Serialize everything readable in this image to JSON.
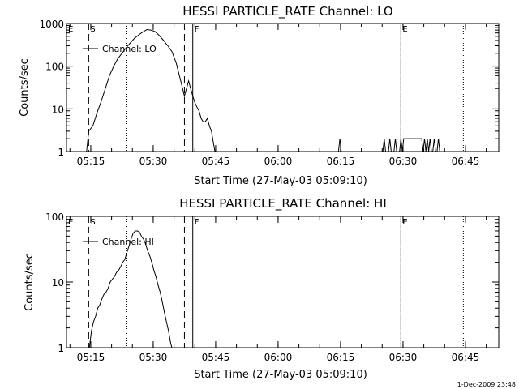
{
  "footer": {
    "timestamp": "1-Dec-2009 23:48"
  },
  "chart_data": [
    {
      "type": "line",
      "title": "HESSI PARTICLE_RATE Channel: LO",
      "xlabel": "Start Time (27-May-03 05:09:10)",
      "ylabel": "Counts/sec",
      "y_scale": "log",
      "ylim": [
        1,
        1000
      ],
      "xlim": [
        "05:09:10",
        "06:53:00"
      ],
      "x_ticks": [
        "05:15",
        "05:30",
        "05:45",
        "06:00",
        "06:15",
        "06:30",
        "06:45"
      ],
      "y_ticks": [
        "1",
        "10",
        "100",
        "1000"
      ],
      "legend": "Channel: LO",
      "legend_position": "top-left",
      "markers": [
        {
          "label": "E",
          "time": "05:09:10",
          "style": "solid"
        },
        {
          "label": "S",
          "time": "05:14:30",
          "style": "dashed"
        },
        {
          "label": "",
          "time": "05:23:30",
          "style": "dotted"
        },
        {
          "label": "",
          "time": "05:37:30",
          "style": "dashed"
        },
        {
          "label": "F",
          "time": "05:39:30",
          "style": "solid"
        },
        {
          "label": "E",
          "time": "06:29:30",
          "style": "solid"
        },
        {
          "label": "",
          "time": "06:29:30",
          "style": "dotted"
        },
        {
          "label": "",
          "time": "06:44:30",
          "style": "dotted"
        }
      ],
      "series": [
        {
          "x": [
            "05:14:00",
            "05:14:30",
            "05:15:30",
            "05:16:30",
            "05:17:30",
            "05:18:30",
            "05:19:30",
            "05:20:30",
            "05:21:30",
            "05:22:30",
            "05:23:30",
            "05:24:30",
            "05:25:30",
            "05:26:30",
            "05:27:30",
            "05:28:30",
            "05:29:30",
            "05:30:30",
            "05:31:30",
            "05:32:30",
            "05:33:30",
            "05:34:30",
            "05:35:30",
            "05:36:30",
            "05:37:30",
            "05:38:00",
            "05:38:30",
            "05:39:00",
            "05:39:30",
            "05:40:00",
            "05:40:30",
            "05:41:00",
            "05:41:30",
            "05:42:00",
            "05:42:30",
            "05:43:00",
            "05:43:30",
            "05:44:00",
            "05:44:30",
            "05:44:50"
          ],
          "values": [
            1,
            3,
            4,
            8,
            15,
            30,
            60,
            100,
            150,
            200,
            270,
            350,
            450,
            540,
            630,
            720,
            700,
            640,
            520,
            400,
            300,
            220,
            120,
            50,
            20,
            30,
            45,
            30,
            20,
            14,
            11,
            9,
            6,
            5,
            5,
            6,
            4,
            3,
            1.5,
            1
          ]
        },
        {
          "x": [
            "06:14:30",
            "06:14:50",
            "06:15:10",
            "06:25:10",
            "06:25:30",
            "06:25:50",
            "06:26:30",
            "06:26:50",
            "06:27:10",
            "06:27:50",
            "06:28:10",
            "06:28:30",
            "06:29:10",
            "06:29:30",
            "06:29:50",
            "06:30:10",
            "06:30:30",
            "06:34:30",
            "06:34:50",
            "06:35:10",
            "06:35:30",
            "06:35:50",
            "06:36:10",
            "06:36:30",
            "06:36:50",
            "06:37:10",
            "06:37:30",
            "06:37:50",
            "06:38:10",
            "06:38:30",
            "06:38:50",
            "06:39:10"
          ],
          "values": [
            1,
            2,
            1,
            1,
            2,
            1,
            1,
            2,
            1,
            1,
            2,
            1,
            1,
            2,
            1,
            2,
            2,
            2,
            1,
            2,
            1,
            2,
            1,
            2,
            1,
            1,
            2,
            1,
            1,
            2,
            1,
            1
          ]
        }
      ]
    },
    {
      "type": "line",
      "title": "HESSI PARTICLE_RATE Channel: HI",
      "xlabel": "Start Time (27-May-03 05:09:10)",
      "ylabel": "Counts/sec",
      "y_scale": "log",
      "ylim": [
        1,
        100
      ],
      "xlim": [
        "05:09:10",
        "06:53:00"
      ],
      "x_ticks": [
        "05:15",
        "05:30",
        "05:45",
        "06:00",
        "06:15",
        "06:30",
        "06:45"
      ],
      "y_ticks": [
        "1",
        "10",
        "100"
      ],
      "legend": "Channel: HI",
      "legend_position": "top-left",
      "markers": [
        {
          "label": "E",
          "time": "05:09:10",
          "style": "solid"
        },
        {
          "label": "S",
          "time": "05:14:30",
          "style": "dashed"
        },
        {
          "label": "",
          "time": "05:23:30",
          "style": "dotted"
        },
        {
          "label": "",
          "time": "05:37:30",
          "style": "dashed"
        },
        {
          "label": "F",
          "time": "05:39:30",
          "style": "solid"
        },
        {
          "label": "E",
          "time": "06:29:30",
          "style": "solid"
        },
        {
          "label": "",
          "time": "06:29:30",
          "style": "dotted"
        },
        {
          "label": "",
          "time": "06:44:30",
          "style": "dotted"
        }
      ],
      "series": [
        {
          "x": [
            "05:14:40",
            "05:15:10",
            "05:15:40",
            "05:16:10",
            "05:16:40",
            "05:17:10",
            "05:17:40",
            "05:18:10",
            "05:18:40",
            "05:19:10",
            "05:19:40",
            "05:20:10",
            "05:20:40",
            "05:21:10",
            "05:21:40",
            "05:22:10",
            "05:22:40",
            "05:23:10",
            "05:23:40",
            "05:24:10",
            "05:24:40",
            "05:25:10",
            "05:25:40",
            "05:26:10",
            "05:26:40",
            "05:27:10",
            "05:27:40",
            "05:28:10",
            "05:28:40",
            "05:29:10",
            "05:29:40",
            "05:30:10",
            "05:30:40",
            "05:31:10",
            "05:31:40",
            "05:32:10",
            "05:32:40",
            "05:33:10",
            "05:33:40",
            "05:34:10",
            "05:34:30"
          ],
          "values": [
            1,
            1.8,
            2.5,
            3,
            4,
            4.5,
            5.5,
            6.5,
            7,
            8,
            10,
            11,
            12,
            14,
            15,
            17,
            20,
            22,
            28,
            35,
            45,
            55,
            60,
            60,
            58,
            50,
            45,
            38,
            30,
            25,
            20,
            15,
            12,
            9,
            7,
            5,
            3.5,
            2.5,
            1.8,
            1.2,
            1
          ]
        }
      ]
    }
  ]
}
